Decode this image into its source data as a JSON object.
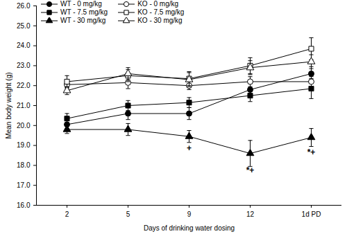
{
  "chart_data": {
    "type": "line",
    "x_label": "Days of drinking water dosing",
    "y_label": "Mean body weight (g)",
    "categories": [
      "2",
      "5",
      "9",
      "12",
      "1d PD"
    ],
    "ylim": [
      16,
      26
    ],
    "yticks": [
      {
        "value": 16,
        "label": "16.0"
      },
      {
        "value": 17,
        "label": "17.0"
      },
      {
        "value": 18,
        "label": "18.0"
      },
      {
        "value": 19,
        "label": "19.0"
      },
      {
        "value": 20,
        "label": "20.0"
      },
      {
        "value": 21,
        "label": "21.0"
      },
      {
        "value": 22,
        "label": "22.0"
      },
      {
        "value": 23,
        "label": "23.0"
      },
      {
        "value": 24,
        "label": "24.0"
      },
      {
        "value": 25,
        "label": "25.0"
      },
      {
        "value": 26,
        "label": "26.0"
      }
    ],
    "grid": false,
    "legend": "top-left",
    "series": [
      {
        "name": "WT - 0 mg/kg",
        "color": "#000000",
        "marker": "circle",
        "values": [
          20.05,
          20.6,
          20.6,
          21.8,
          22.6
        ],
        "errors": [
          0.2,
          0.3,
          0.3,
          0.3,
          0.35
        ]
      },
      {
        "name": "WT - 7.5 mg/kg",
        "color": "#000000",
        "marker": "square",
        "values": [
          20.35,
          21.0,
          21.15,
          21.5,
          21.85
        ],
        "errors": [
          0.25,
          0.25,
          0.25,
          0.3,
          0.5
        ]
      },
      {
        "name": "WT - 30 mg/kg",
        "color": "#000000",
        "marker": "triangle",
        "values": [
          19.8,
          19.8,
          19.45,
          18.6,
          19.4
        ],
        "errors": [
          0.2,
          0.3,
          0.3,
          0.65,
          0.45
        ]
      },
      {
        "name": "KO - 0 mg/kg",
        "color": "#000000",
        "marker": "circle-open",
        "values": [
          22.05,
          22.15,
          22.0,
          22.2,
          22.2
        ],
        "errors": [
          0.2,
          0.3,
          0.2,
          0.25,
          0.25
        ]
      },
      {
        "name": "KO - 7.5 mg/kg",
        "color": "#000000",
        "marker": "square-open",
        "values": [
          22.2,
          22.5,
          22.35,
          23.0,
          23.85
        ],
        "errors": [
          0.3,
          0.3,
          0.35,
          0.4,
          0.55
        ]
      },
      {
        "name": "KO - 30 mg/kg",
        "color": "#000000",
        "marker": "triangle-open",
        "values": [
          21.75,
          22.6,
          22.3,
          22.9,
          23.2
        ],
        "errors": [
          0.2,
          0.3,
          0.35,
          0.35,
          0.35
        ]
      }
    ],
    "annotations": [
      {
        "x": "9",
        "y": 18.85,
        "text": "+"
      },
      {
        "x": "12",
        "y": 17.75,
        "text": "*+"
      },
      {
        "x": "1d PD",
        "y": 18.65,
        "text": "*+"
      }
    ]
  }
}
